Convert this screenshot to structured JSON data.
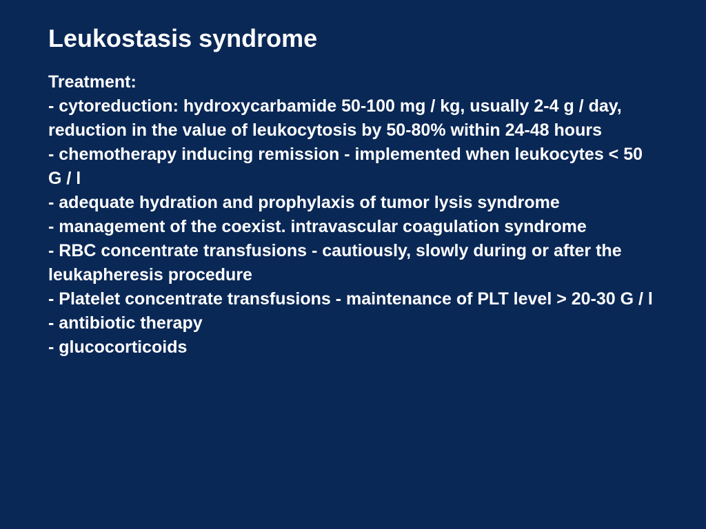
{
  "slide": {
    "title": "Leukostasis syndrome",
    "section_heading": "Treatment:",
    "bullets": [
      "- cytoreduction: hydroxycarbamide 50-100 mg / kg, usually 2-4 g / day, reduction in the value of leukocytosis by 50-80% within 24-48 hours",
      "- chemotherapy inducing remission - implemented when leukocytes < 50 G / l",
      "- adequate hydration and prophylaxis of tumor lysis syndrome",
      "- management of the coexist. intravascular coagulation syndrome",
      "- RBC concentrate transfusions - cautiously, slowly during or after the leukapheresis procedure",
      "- Platelet concentrate transfusions - maintenance of PLT level > 20-30 G / l",
      "- antibiotic therapy",
      "- glucocorticoids"
    ]
  },
  "style": {
    "background_color": "#0a2856",
    "text_color": "#ffffff",
    "title_fontsize": 36,
    "body_fontsize": 25,
    "font_family": "Arial",
    "font_weight": "bold"
  }
}
